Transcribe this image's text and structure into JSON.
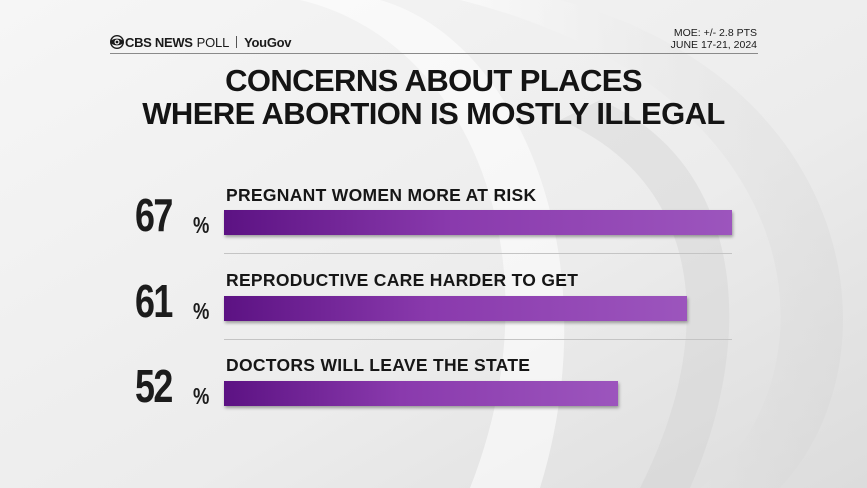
{
  "brand": {
    "network": "CBS NEWS",
    "poll": "POLL",
    "partner": "YouGov"
  },
  "moe": {
    "margin": "MOE: +/- 2.8 PTS",
    "dates": "JUNE 17-21, 2024"
  },
  "title": {
    "line1": "CONCERNS ABOUT PLACES",
    "line2": "WHERE ABORTION IS MOSTLY ILLEGAL"
  },
  "colors": {
    "bar_start": "#5c1283",
    "bar_end": "#9c55bd",
    "text": "#161616"
  },
  "chart_data": {
    "type": "bar",
    "orientation": "horizontal",
    "title": "CONCERNS ABOUT PLACES WHERE ABORTION IS MOSTLY ILLEGAL",
    "categories": [
      "PREGNANT WOMEN MORE AT RISK",
      "REPRODUCTIVE CARE HARDER TO GET",
      "DOCTORS WILL LEAVE THE STATE"
    ],
    "values": [
      67,
      61,
      52
    ],
    "value_labels": [
      "67",
      "61",
      "52"
    ],
    "unit": "%",
    "xlim": [
      0,
      67
    ],
    "xlabel": "",
    "ylabel": "",
    "grid": false,
    "legend": "none"
  }
}
